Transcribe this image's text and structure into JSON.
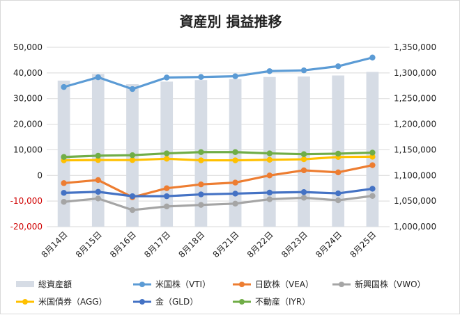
{
  "chart_data": {
    "type": "bar+line",
    "title": "資産別 損益推移",
    "categories": [
      "8月14日",
      "8月15日",
      "8月16日",
      "8月17日",
      "8月18日",
      "8月21日",
      "8月22日",
      "8月23日",
      "8月24日",
      "8月25日"
    ],
    "left_axis": {
      "min": -20000,
      "max": 50000,
      "step": 10000,
      "ticks": [
        "-20,000",
        "-10,000",
        "0",
        "10,000",
        "20,000",
        "30,000",
        "40,000",
        "50,000"
      ]
    },
    "right_axis": {
      "min": 1000000,
      "max": 1350000,
      "step": 50000,
      "ticks": [
        "1,000,000",
        "1,050,000",
        "1,100,000",
        "1,150,000",
        "1,200,000",
        "1,250,000",
        "1,300,000",
        "1,350,000"
      ]
    },
    "bars": {
      "name": "総資産額",
      "axis": "right",
      "color": "#d6dce5",
      "values": [
        1285000,
        1298000,
        1278000,
        1283000,
        1286000,
        1288000,
        1292000,
        1293000,
        1295000,
        1302000
      ]
    },
    "series": [
      {
        "name": "米国株（VTI）",
        "color": "#5b9bd5",
        "values": [
          34500,
          38300,
          33700,
          38200,
          38400,
          38700,
          40700,
          41000,
          42600,
          46000
        ]
      },
      {
        "name": "日欧株（VEA）",
        "color": "#ed7d31",
        "values": [
          -3000,
          -1800,
          -8500,
          -5000,
          -3500,
          -2800,
          0,
          2000,
          1200,
          4000
        ]
      },
      {
        "name": "新興国株（VWO）",
        "color": "#a5a5a5",
        "values": [
          -10300,
          -9000,
          -13500,
          -12100,
          -11500,
          -11000,
          -9300,
          -8700,
          -9700,
          -8000
        ]
      },
      {
        "name": "米国債券（AGG）",
        "color": "#ffc000",
        "values": [
          5900,
          6000,
          6000,
          6500,
          5900,
          5900,
          6100,
          6300,
          7200,
          7300
        ]
      },
      {
        "name": "金（GLD）",
        "color": "#4472c4",
        "values": [
          -6800,
          -6400,
          -8100,
          -8100,
          -7400,
          -7100,
          -6700,
          -6500,
          -7000,
          -5200
        ]
      },
      {
        "name": "不動産（IYR）",
        "color": "#70ad47",
        "values": [
          7200,
          7700,
          7900,
          8600,
          9100,
          9100,
          8600,
          8300,
          8500,
          8900
        ]
      }
    ],
    "grid": true,
    "legend_position": "bottom"
  }
}
